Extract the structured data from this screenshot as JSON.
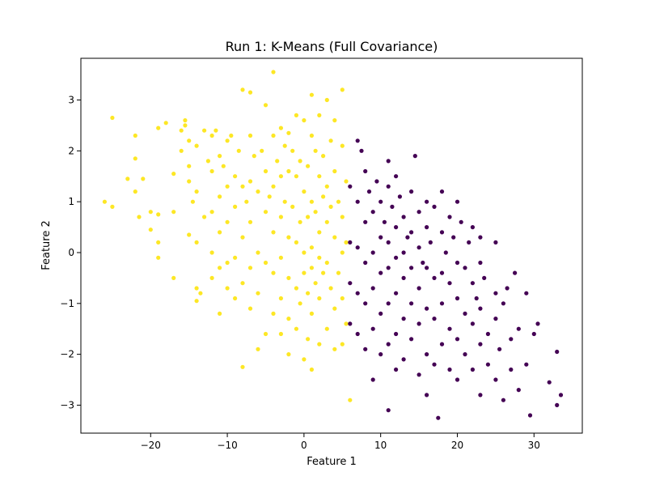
{
  "chart_data": {
    "type": "scatter",
    "title": "Run 1: K-Means (Full Covariance)",
    "xlabel": "Feature 1",
    "ylabel": "Feature 2",
    "xlim": [
      -29.1,
      36.3
    ],
    "ylim": [
      -3.55,
      3.82
    ],
    "xticks": [
      -20,
      -10,
      0,
      10,
      20,
      30
    ],
    "yticks": [
      -3,
      -2,
      -1,
      0,
      1,
      2,
      3
    ],
    "xtick_labels": [
      "−20",
      "−10",
      "0",
      "10",
      "20",
      "30"
    ],
    "ytick_labels": [
      "−3",
      "−2",
      "−1",
      "0",
      "1",
      "2",
      "3"
    ],
    "grid": false,
    "legend": "none",
    "series": [
      {
        "color": "#fde725",
        "points": [
          [
            -26,
            1.0
          ],
          [
            -25,
            2.65
          ],
          [
            -25,
            0.9
          ],
          [
            -23,
            1.45
          ],
          [
            -22,
            2.3
          ],
          [
            -22,
            1.85
          ],
          [
            -22,
            1.2
          ],
          [
            -21.5,
            0.7
          ],
          [
            -21,
            1.45
          ],
          [
            -20,
            0.8
          ],
          [
            -20,
            0.45
          ],
          [
            -19,
            2.45
          ],
          [
            -19,
            0.75
          ],
          [
            -19,
            0.2
          ],
          [
            -19,
            -0.1
          ],
          [
            -18,
            2.55
          ],
          [
            -17,
            1.55
          ],
          [
            -17,
            0.8
          ],
          [
            -17,
            -0.5
          ],
          [
            -16,
            2.4
          ],
          [
            -16,
            2.0
          ],
          [
            -15.5,
            2.6
          ],
          [
            -15.5,
            2.5
          ],
          [
            -15,
            2.2
          ],
          [
            -15,
            1.7
          ],
          [
            -15,
            1.4
          ],
          [
            -15,
            0.35
          ],
          [
            -14.5,
            1.0
          ],
          [
            -14,
            2.1
          ],
          [
            -14,
            1.2
          ],
          [
            -14,
            0.2
          ],
          [
            -14,
            -0.7
          ],
          [
            -14,
            -0.95
          ],
          [
            -13.5,
            -0.8
          ],
          [
            -13,
            2.4
          ],
          [
            -13,
            0.7
          ],
          [
            -12.5,
            1.8
          ],
          [
            -12,
            2.3
          ],
          [
            -12,
            1.6
          ],
          [
            -12,
            0.8
          ],
          [
            -12,
            0.0
          ],
          [
            -12,
            -0.5
          ],
          [
            -11.5,
            2.4
          ],
          [
            -11,
            1.9
          ],
          [
            -11,
            1.1
          ],
          [
            -11,
            0.4
          ],
          [
            -11,
            -0.3
          ],
          [
            -11,
            -1.2
          ],
          [
            -10.5,
            1.7
          ],
          [
            -10,
            2.2
          ],
          [
            -10,
            1.3
          ],
          [
            -10,
            0.6
          ],
          [
            -10,
            -0.2
          ],
          [
            -10,
            -0.7
          ],
          [
            -9.5,
            2.3
          ],
          [
            -9,
            1.5
          ],
          [
            -9,
            0.9
          ],
          [
            -9,
            -0.1
          ],
          [
            -9,
            -0.9
          ],
          [
            -8.5,
            2.0
          ],
          [
            -8,
            3.2
          ],
          [
            -8,
            1.3
          ],
          [
            -8,
            0.3
          ],
          [
            -8,
            -0.6
          ],
          [
            -8,
            -2.25
          ],
          [
            -7.5,
            1.0
          ],
          [
            -7,
            3.15
          ],
          [
            -7,
            2.3
          ],
          [
            -7,
            1.4
          ],
          [
            -7,
            0.6
          ],
          [
            -7,
            -0.3
          ],
          [
            -7,
            -1.1
          ],
          [
            -6.5,
            1.9
          ],
          [
            -6,
            1.2
          ],
          [
            -6,
            0.0
          ],
          [
            -6,
            -0.8
          ],
          [
            -6,
            -1.9
          ],
          [
            -5.5,
            2.0
          ],
          [
            -5,
            2.9
          ],
          [
            -5,
            1.6
          ],
          [
            -5,
            0.8
          ],
          [
            -5,
            -0.2
          ],
          [
            -5,
            -1.6
          ],
          [
            -4.5,
            1.1
          ],
          [
            -4,
            3.55
          ],
          [
            -4,
            2.3
          ],
          [
            -4,
            1.3
          ],
          [
            -4,
            0.4
          ],
          [
            -4,
            -0.4
          ],
          [
            -4,
            -1.2
          ],
          [
            -3.5,
            1.8
          ],
          [
            -3,
            2.45
          ],
          [
            -3,
            1.5
          ],
          [
            -3,
            0.7
          ],
          [
            -3,
            -0.1
          ],
          [
            -3,
            -0.9
          ],
          [
            -3,
            -1.6
          ],
          [
            -2.5,
            2.1
          ],
          [
            -2.5,
            1.0
          ],
          [
            -2,
            2.35
          ],
          [
            -2,
            1.6
          ],
          [
            -2,
            0.3
          ],
          [
            -2,
            -0.5
          ],
          [
            -2,
            -1.3
          ],
          [
            -2,
            -2.0
          ],
          [
            -1.5,
            2.0
          ],
          [
            -1.5,
            0.9
          ],
          [
            -1,
            2.7
          ],
          [
            -1,
            1.5
          ],
          [
            -1,
            0.2
          ],
          [
            -1,
            -0.7
          ],
          [
            -1,
            -1.5
          ],
          [
            -0.5,
            1.8
          ],
          [
            -0.5,
            0.6
          ],
          [
            -0.5,
            -1.0
          ],
          [
            0,
            2.6
          ],
          [
            0,
            1.2
          ],
          [
            0,
            0.0
          ],
          [
            0,
            -0.4
          ],
          [
            0,
            -2.1
          ],
          [
            0.5,
            1.7
          ],
          [
            0.5,
            0.7
          ],
          [
            0.5,
            -0.8
          ],
          [
            0.5,
            -1.7
          ],
          [
            1,
            3.1
          ],
          [
            1,
            2.3
          ],
          [
            1,
            1.0
          ],
          [
            1,
            0.1
          ],
          [
            1,
            -0.3
          ],
          [
            1,
            -1.2
          ],
          [
            1,
            -2.3
          ],
          [
            1.5,
            2.0
          ],
          [
            1.5,
            0.8
          ],
          [
            1.5,
            -0.6
          ],
          [
            2,
            2.7
          ],
          [
            2,
            1.5
          ],
          [
            2,
            0.4
          ],
          [
            2,
            -0.1
          ],
          [
            2,
            -0.9
          ],
          [
            2,
            -1.8
          ],
          [
            2.5,
            1.9
          ],
          [
            2.5,
            1.1
          ],
          [
            2.5,
            -0.4
          ],
          [
            3,
            3.0
          ],
          [
            3,
            1.3
          ],
          [
            3,
            0.6
          ],
          [
            3,
            -0.2
          ],
          [
            3,
            -1.5
          ],
          [
            3.5,
            2.2
          ],
          [
            3.5,
            0.9
          ],
          [
            3.5,
            -0.7
          ],
          [
            4,
            2.6
          ],
          [
            4,
            1.6
          ],
          [
            4,
            0.3
          ],
          [
            4,
            -1.1
          ],
          [
            4,
            -1.9
          ],
          [
            4.5,
            1.0
          ],
          [
            4.5,
            -0.4
          ],
          [
            5,
            3.2
          ],
          [
            5,
            2.1
          ],
          [
            5,
            0.7
          ],
          [
            5,
            0.0
          ],
          [
            5,
            -0.9
          ],
          [
            5,
            -1.8
          ],
          [
            5.5,
            1.4
          ],
          [
            5.5,
            0.2
          ],
          [
            5.5,
            -1.4
          ],
          [
            6,
            -2.9
          ]
        ]
      },
      {
        "color": "#440154",
        "points": [
          [
            6,
            1.3
          ],
          [
            6,
            0.2
          ],
          [
            6,
            -0.6
          ],
          [
            6,
            -1.4
          ],
          [
            7,
            2.2
          ],
          [
            7,
            1.0
          ],
          [
            7,
            0.1
          ],
          [
            7,
            -0.8
          ],
          [
            7,
            -1.6
          ],
          [
            7.5,
            2.0
          ],
          [
            8,
            1.6
          ],
          [
            8,
            0.6
          ],
          [
            8,
            -0.2
          ],
          [
            8,
            -1.0
          ],
          [
            8,
            -1.9
          ],
          [
            8.5,
            1.2
          ],
          [
            9,
            0.8
          ],
          [
            9,
            0.0
          ],
          [
            9,
            -0.7
          ],
          [
            9,
            -1.5
          ],
          [
            9,
            -2.5
          ],
          [
            9.5,
            1.4
          ],
          [
            10,
            1.0
          ],
          [
            10,
            0.3
          ],
          [
            10,
            -0.4
          ],
          [
            10,
            -1.2
          ],
          [
            10,
            -2.0
          ],
          [
            10.5,
            0.6
          ],
          [
            11,
            1.8
          ],
          [
            11,
            1.3
          ],
          [
            11,
            0.2
          ],
          [
            11,
            -0.3
          ],
          [
            11,
            -1.0
          ],
          [
            11,
            -1.8
          ],
          [
            11,
            -3.1
          ],
          [
            11.5,
            0.9
          ],
          [
            12,
            1.5
          ],
          [
            12,
            0.5
          ],
          [
            12,
            -0.1
          ],
          [
            12,
            -0.8
          ],
          [
            12,
            -1.6
          ],
          [
            12,
            -2.3
          ],
          [
            12.5,
            1.1
          ],
          [
            13,
            0.7
          ],
          [
            13,
            0.0
          ],
          [
            13,
            -0.5
          ],
          [
            13,
            -1.3
          ],
          [
            13,
            -2.1
          ],
          [
            13.5,
            0.3
          ],
          [
            14,
            1.2
          ],
          [
            14,
            0.4
          ],
          [
            14,
            -0.3
          ],
          [
            14,
            -1.0
          ],
          [
            14,
            -1.7
          ],
          [
            14.5,
            1.9
          ],
          [
            15,
            0.8
          ],
          [
            15,
            0.1
          ],
          [
            15,
            -0.7
          ],
          [
            15,
            -1.4
          ],
          [
            15,
            -2.4
          ],
          [
            15.5,
            -0.2
          ],
          [
            16,
            1.0
          ],
          [
            16,
            0.5
          ],
          [
            16,
            -0.3
          ],
          [
            16,
            -1.1
          ],
          [
            16,
            -2.0
          ],
          [
            16,
            -2.8
          ],
          [
            16.5,
            0.2
          ],
          [
            17,
            0.9
          ],
          [
            17,
            -0.5
          ],
          [
            17,
            -1.3
          ],
          [
            17,
            -2.2
          ],
          [
            17.5,
            -3.25
          ],
          [
            18,
            1.2
          ],
          [
            18,
            0.4
          ],
          [
            18,
            -0.4
          ],
          [
            18,
            -1.0
          ],
          [
            18,
            -1.8
          ],
          [
            18.5,
            0.0
          ],
          [
            19,
            0.7
          ],
          [
            19,
            -0.6
          ],
          [
            19,
            -1.5
          ],
          [
            19,
            -2.3
          ],
          [
            19.5,
            0.3
          ],
          [
            20,
            1.0
          ],
          [
            20,
            -0.2
          ],
          [
            20,
            -0.9
          ],
          [
            20,
            -1.7
          ],
          [
            20,
            -2.5
          ],
          [
            20.5,
            0.6
          ],
          [
            21,
            -0.3
          ],
          [
            21,
            -1.2
          ],
          [
            21,
            -2.0
          ],
          [
            21.5,
            0.2
          ],
          [
            22,
            0.5
          ],
          [
            22,
            -0.6
          ],
          [
            22,
            -1.4
          ],
          [
            22,
            -2.3
          ],
          [
            22.5,
            -0.9
          ],
          [
            23,
            0.3
          ],
          [
            23,
            -0.2
          ],
          [
            23,
            -1.1
          ],
          [
            23,
            -1.8
          ],
          [
            23,
            -2.8
          ],
          [
            23.5,
            -0.5
          ],
          [
            24,
            -1.6
          ],
          [
            24,
            -2.2
          ],
          [
            25,
            0.2
          ],
          [
            25,
            -0.8
          ],
          [
            25,
            -1.3
          ],
          [
            25,
            -2.5
          ],
          [
            25.5,
            -1.9
          ],
          [
            26,
            -1.0
          ],
          [
            26,
            -2.9
          ],
          [
            26.5,
            -0.7
          ],
          [
            27,
            -1.7
          ],
          [
            27,
            -2.3
          ],
          [
            27.5,
            -0.4
          ],
          [
            28,
            -1.5
          ],
          [
            28,
            -2.7
          ],
          [
            29,
            -0.8
          ],
          [
            29,
            -2.2
          ],
          [
            29.5,
            -3.2
          ],
          [
            30,
            -1.6
          ],
          [
            30.5,
            -1.4
          ],
          [
            32,
            -2.55
          ],
          [
            33,
            -1.95
          ],
          [
            33,
            -3.0
          ],
          [
            33.5,
            -2.8
          ]
        ]
      }
    ]
  }
}
